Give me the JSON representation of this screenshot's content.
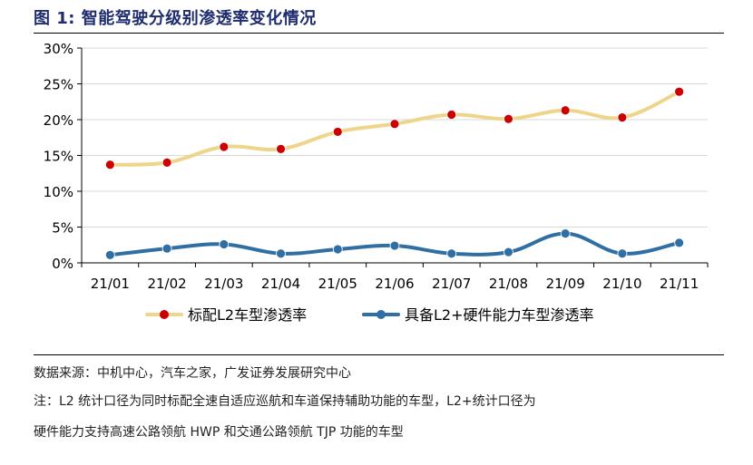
{
  "figure_title": "图 1:  智能驾驶分级别渗透率变化情况",
  "chart_data": {
    "type": "line",
    "categories": [
      "21/01",
      "21/02",
      "21/03",
      "21/04",
      "21/05",
      "21/06",
      "21/07",
      "21/08",
      "21/09",
      "21/10",
      "21/11"
    ],
    "series": [
      {
        "name": "标配L2车型渗透率",
        "color": "#eed58a",
        "marker_color": "#cc0000",
        "values": [
          13.7,
          14.0,
          16.2,
          15.9,
          18.3,
          19.4,
          20.7,
          20.1,
          21.3,
          20.3,
          23.9
        ]
      },
      {
        "name": "具备L2+硬件能力车型渗透率",
        "color": "#2f6fa3",
        "marker_color": "#2f6fa3",
        "values": [
          1.1,
          2.0,
          2.6,
          1.3,
          1.9,
          2.4,
          1.3,
          1.5,
          4.1,
          1.3,
          2.8
        ]
      }
    ],
    "ylim": [
      0,
      30
    ],
    "yticks": [
      "0%",
      "5%",
      "10%",
      "15%",
      "20%",
      "25%",
      "30%"
    ],
    "legend_position": "bottom"
  },
  "source": "数据来源：中机中心，汽车之家，广发证券发展研究中心",
  "note_line_1": "注：L2 统计口径为同时标配全速自适应巡航和车道保持辅助功能的车型，L2+统计口径为",
  "note_line_2": "硬件能力支持高速公路领航 HWP 和交通公路领航 TJP 功能的车型"
}
